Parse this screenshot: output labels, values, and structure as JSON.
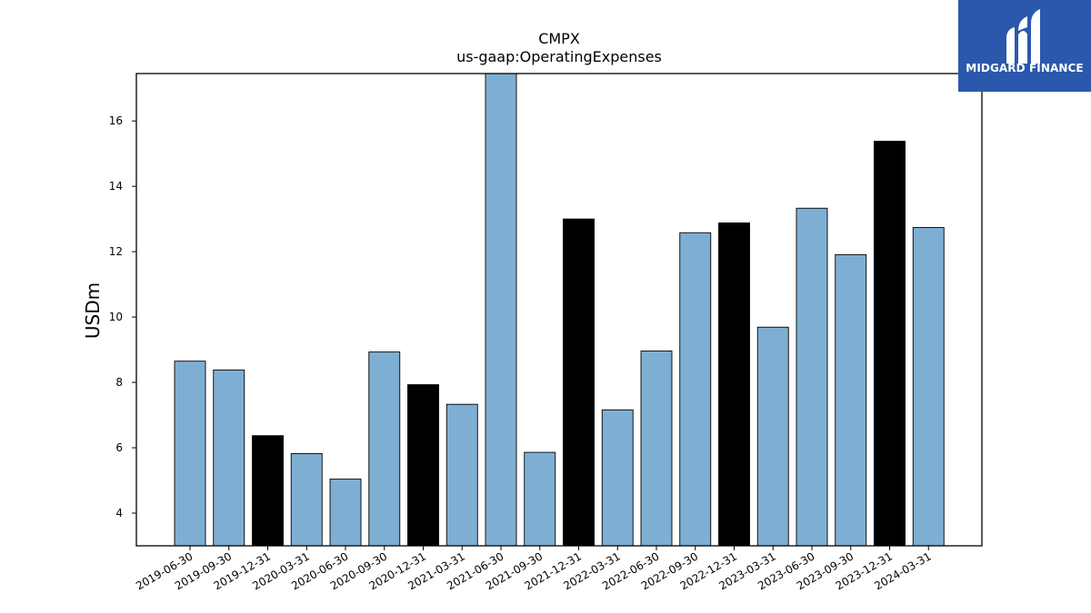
{
  "chart_data": {
    "type": "bar",
    "title": "CMPX",
    "subtitle": "us-gaap:OperatingExpenses",
    "xlabel": "",
    "ylabel": "USDm",
    "ylim": [
      3.0,
      17.45
    ],
    "yticks": [
      4,
      6,
      8,
      10,
      12,
      14,
      16
    ],
    "grid": false,
    "categories": [
      "2019-06-30",
      "2019-09-30",
      "2019-12-31",
      "2020-03-31",
      "2020-06-30",
      "2020-09-30",
      "2020-12-31",
      "2021-03-31",
      "2021-06-30",
      "2021-09-30",
      "2021-12-31",
      "2022-03-31",
      "2022-06-30",
      "2022-09-30",
      "2022-12-31",
      "2023-03-31",
      "2023-06-30",
      "2023-09-30",
      "2023-12-31",
      "2024-03-31"
    ],
    "values": [
      8.65,
      8.38,
      6.37,
      5.82,
      5.04,
      8.93,
      7.93,
      7.33,
      17.6,
      5.86,
      13.0,
      7.16,
      8.96,
      12.58,
      12.88,
      9.69,
      13.33,
      11.91,
      15.38,
      12.74
    ],
    "colors": {
      "regular": "#7eafd3",
      "year_end": "#000000",
      "edge": "#000000"
    },
    "year_end_categories": [
      "2019-12-31",
      "2020-12-31",
      "2021-12-31",
      "2022-12-31",
      "2023-12-31"
    ]
  },
  "logo": {
    "text": "MIDGARD FINANCE",
    "icon": "midgard-logo-icon",
    "background": "#2b58ab"
  }
}
